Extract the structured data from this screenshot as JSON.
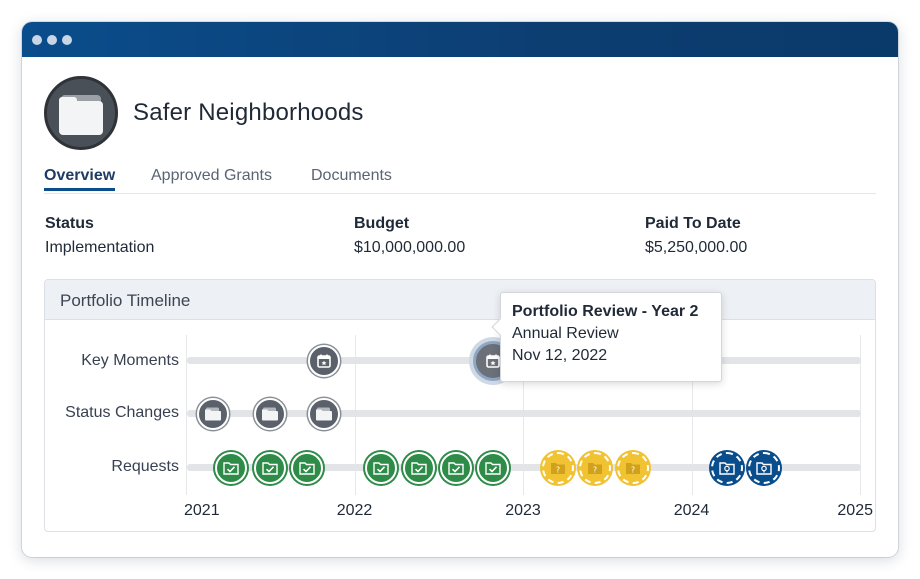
{
  "window": {
    "dots": [
      "dot",
      "dot",
      "dot"
    ]
  },
  "header": {
    "title": "Safer Neighborhoods",
    "avatar_icon": "folder-icon"
  },
  "tabs": [
    {
      "label": "Overview",
      "active": true
    },
    {
      "label": "Approved Grants",
      "active": false
    },
    {
      "label": "Documents",
      "active": false
    }
  ],
  "summary": {
    "status_label": "Status",
    "status_value": "Implementation",
    "budget_label": "Budget",
    "budget_value": "$10,000,000.00",
    "paid_label": "Paid To Date",
    "paid_value": "$5,250,000.00"
  },
  "timeline": {
    "title": "Portfolio Timeline",
    "rows": [
      "Key Moments",
      "Status Changes",
      "Requests"
    ],
    "years": [
      "2021",
      "2022",
      "2023",
      "2024",
      "2025"
    ],
    "range": [
      2021.0,
      2025.0
    ],
    "key_moments": [
      {
        "t": 2021.82,
        "icon": "calendar-icon"
      },
      {
        "t": 2022.82,
        "icon": "calendar-icon",
        "selected": true
      }
    ],
    "status_changes": [
      {
        "t": 2021.16,
        "icon": "folder-icon"
      },
      {
        "t": 2021.5,
        "icon": "folder-icon"
      },
      {
        "t": 2021.82,
        "icon": "folder-icon"
      }
    ],
    "requests": [
      {
        "t": 2021.27,
        "state": "approved",
        "icon": "check-folder-icon"
      },
      {
        "t": 2021.5,
        "state": "approved",
        "icon": "check-folder-icon"
      },
      {
        "t": 2021.72,
        "state": "approved",
        "icon": "check-folder-icon"
      },
      {
        "t": 2022.16,
        "state": "approved",
        "icon": "check-folder-icon"
      },
      {
        "t": 2022.38,
        "state": "approved",
        "icon": "check-folder-icon"
      },
      {
        "t": 2022.6,
        "state": "approved",
        "icon": "check-folder-icon"
      },
      {
        "t": 2022.82,
        "state": "approved",
        "icon": "check-folder-icon"
      },
      {
        "t": 2023.21,
        "state": "pending",
        "icon": "question-folder-icon"
      },
      {
        "t": 2023.43,
        "state": "pending",
        "icon": "question-folder-icon"
      },
      {
        "t": 2023.65,
        "state": "pending",
        "icon": "question-folder-icon"
      },
      {
        "t": 2024.21,
        "state": "draft",
        "icon": "bulb-folder-icon"
      },
      {
        "t": 2024.43,
        "state": "draft",
        "icon": "bulb-folder-icon"
      }
    ],
    "tooltip": {
      "title": "Portfolio Review - Year 2",
      "type": "Annual Review",
      "date": "Nov 12, 2022"
    }
  }
}
